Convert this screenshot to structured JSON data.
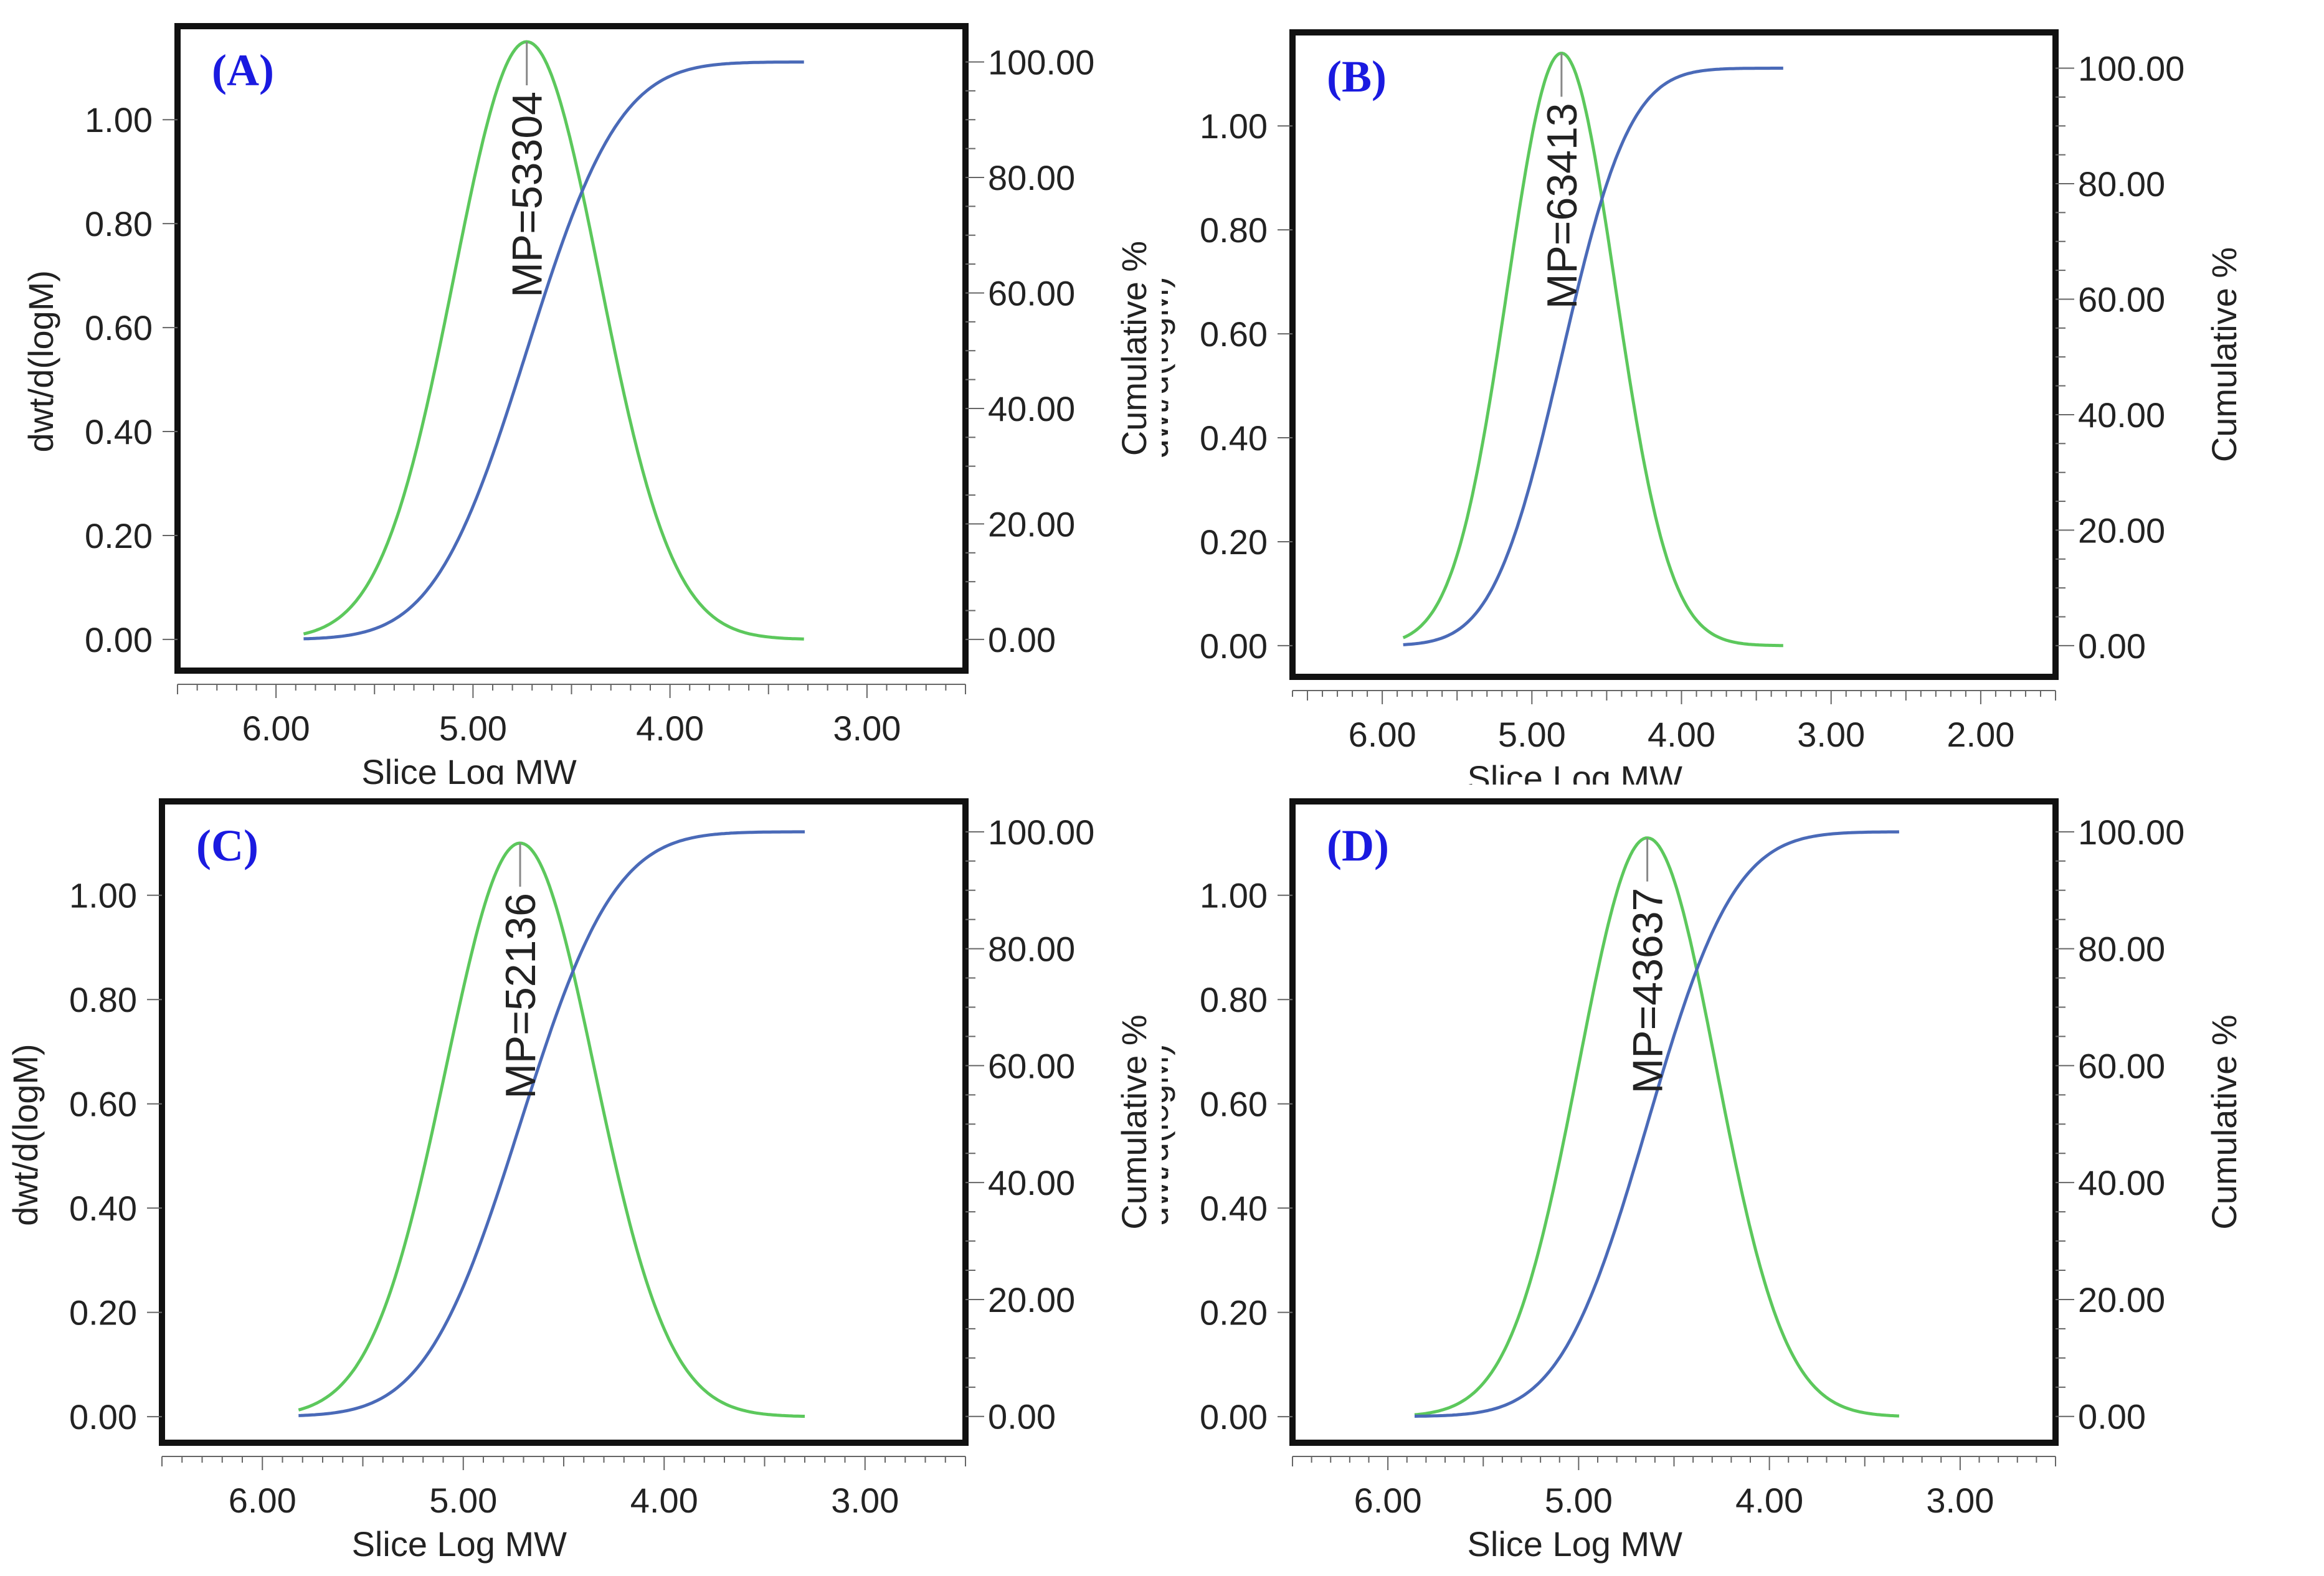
{
  "figure": {
    "line_colors": {
      "distribution": "#5cc85c",
      "cumulative": "#4a6ab8",
      "panel_label": "#1a1ae0"
    }
  },
  "chart_data": [
    {
      "type": "line",
      "panel_label": "(A)",
      "xlabel": "Slice Log MW",
      "ylabel_left": "dwt/d(logM)",
      "ylabel_right": "Cumulative %",
      "xlim": [
        6.5,
        2.5
      ],
      "ylim_left": [
        -0.06,
        1.18
      ],
      "ylim_right": [
        -5.4,
        106.2
      ],
      "x_ticks": [
        "6.00",
        "5.00",
        "4.00",
        "3.00"
      ],
      "y_ticks_left": [
        "0.00",
        "0.20",
        "0.40",
        "0.60",
        "0.80",
        "1.00"
      ],
      "y_ticks_right": [
        "0.00",
        "20.00",
        "40.00",
        "60.00",
        "80.00",
        "100.00"
      ],
      "annotation": "MP=53304",
      "series": [
        {
          "name": "dwt/d(logM)",
          "axis": "left",
          "x_range": [
            5.86,
            3.32
          ],
          "peak_x": 4.727,
          "peak_y": 1.15,
          "sigma": 0.37
        },
        {
          "name": "Cumulative %",
          "axis": "right",
          "x_range": [
            5.86,
            3.32
          ],
          "median_x": 4.727,
          "sigma": 0.37
        }
      ]
    },
    {
      "type": "line",
      "panel_label": "(B)",
      "xlabel": "Slice Log MW",
      "ylabel_left": "dwt/d(logM)",
      "ylabel_right": "Cumulative %",
      "xlim": [
        6.6,
        1.5
      ],
      "ylim_left": [
        -0.06,
        1.18
      ],
      "ylim_right": [
        -5.4,
        106.2
      ],
      "x_ticks": [
        "6.00",
        "5.00",
        "4.00",
        "3.00",
        "2.00"
      ],
      "y_ticks_left": [
        "0.00",
        "0.20",
        "0.40",
        "0.60",
        "0.80",
        "1.00"
      ],
      "y_ticks_right": [
        "0.00",
        "20.00",
        "40.00",
        "60.00",
        "80.00",
        "100.00"
      ],
      "annotation": "MP=63413",
      "series": [
        {
          "name": "dwt/d(logM)",
          "axis": "left",
          "x_range": [
            5.86,
            3.32
          ],
          "peak_x": 4.802,
          "peak_y": 1.14,
          "sigma": 0.36
        },
        {
          "name": "Cumulative %",
          "axis": "right",
          "x_range": [
            5.86,
            3.32
          ],
          "median_x": 4.802,
          "sigma": 0.36
        }
      ]
    },
    {
      "type": "line",
      "panel_label": "(C)",
      "xlabel": "Slice Log MW",
      "ylabel_left": "dwt/d(logM)",
      "ylabel_right": "Cumulative %",
      "xlim": [
        6.5,
        2.5
      ],
      "ylim_left": [
        -0.05,
        1.18
      ],
      "ylim_right": [
        -4.5,
        105.2
      ],
      "x_ticks": [
        "6.00",
        "5.00",
        "4.00",
        "3.00"
      ],
      "y_ticks_left": [
        "0.00",
        "0.20",
        "0.40",
        "0.60",
        "0.80",
        "1.00"
      ],
      "y_ticks_right": [
        "0.00",
        "20.00",
        "40.00",
        "60.00",
        "80.00",
        "100.00"
      ],
      "annotation": "MP=52136",
      "series": [
        {
          "name": "dwt/d(logM)",
          "axis": "left",
          "x_range": [
            5.82,
            3.3
          ],
          "peak_x": 4.717,
          "peak_y": 1.1,
          "sigma": 0.37
        },
        {
          "name": "Cumulative %",
          "axis": "right",
          "x_range": [
            5.82,
            3.3
          ],
          "median_x": 4.717,
          "sigma": 0.37
        }
      ]
    },
    {
      "type": "line",
      "panel_label": "(D)",
      "xlabel": "Slice Log MW",
      "ylabel_left": "dwt/d(logM)",
      "ylabel_right": "Cumulative %",
      "xlim": [
        6.5,
        2.5
      ],
      "ylim_left": [
        -0.05,
        1.18
      ],
      "ylim_right": [
        -4.5,
        105.2
      ],
      "x_ticks": [
        "6.00",
        "5.00",
        "4.00",
        "3.00"
      ],
      "y_ticks_left": [
        "0.00",
        "0.20",
        "0.40",
        "0.60",
        "0.80",
        "1.00"
      ],
      "y_ticks_right": [
        "0.00",
        "20.00",
        "40.00",
        "60.00",
        "80.00",
        "100.00"
      ],
      "annotation": "MP=43637",
      "series": [
        {
          "name": "dwt/d(logM)",
          "axis": "left",
          "x_range": [
            5.86,
            3.32
          ],
          "peak_x": 4.64,
          "peak_y": 1.11,
          "sigma": 0.36
        },
        {
          "name": "Cumulative %",
          "axis": "right",
          "x_range": [
            5.86,
            3.32
          ],
          "median_x": 4.64,
          "sigma": 0.36
        }
      ]
    }
  ]
}
